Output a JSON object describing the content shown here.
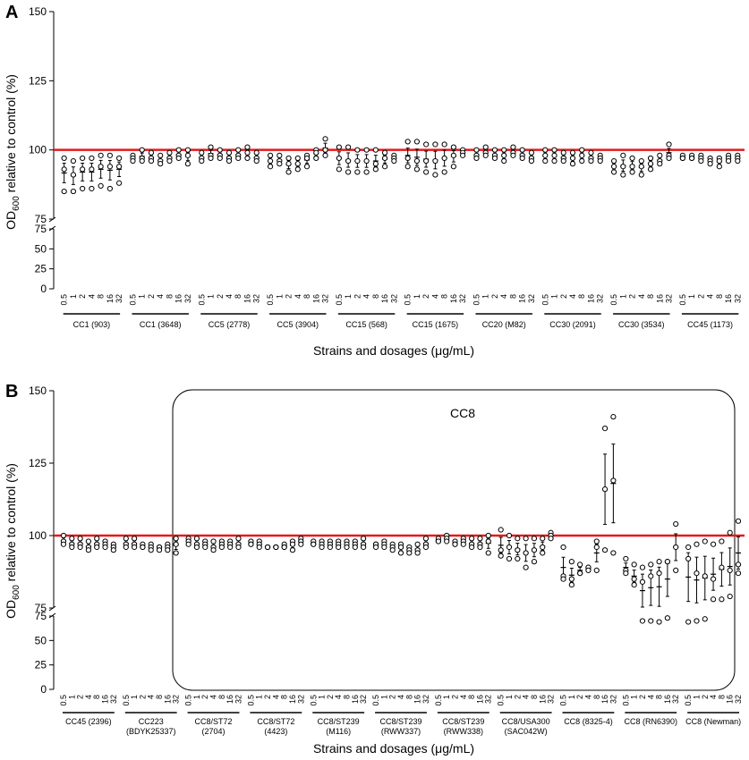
{
  "doses": [
    "0.5",
    "1",
    "2",
    "4",
    "8",
    "16",
    "32"
  ],
  "reference_value": 100,
  "colors": {
    "reference_line": "#e41a1c",
    "marks": "#000000"
  },
  "chart_data": [
    {
      "type": "scatter",
      "panel": "A",
      "ylabel": {
        "main": "OD",
        "sub": "600",
        "rest": " relative to control (%)"
      },
      "xlabel": "Strains and dosages (μg/mL)",
      "y_upper": {
        "range": [
          75,
          150
        ],
        "ticks": [
          "75",
          "100",
          "125",
          "150"
        ]
      },
      "y_lower": {
        "range": [
          0,
          75
        ],
        "ticks": [
          "0",
          "25",
          "50",
          "75"
        ]
      },
      "groups": [
        {
          "label": [
            "CC1 (903)"
          ],
          "points": [
            [
              97,
              93,
              85
            ],
            [
              96,
              91,
              85
            ],
            [
              97,
              93,
              86
            ],
            [
              97,
              93,
              86
            ],
            [
              98,
              94,
              87
            ],
            [
              98,
              94,
              86
            ],
            [
              97,
              94,
              88
            ]
          ]
        },
        {
          "label": [
            "CC1 (3648)"
          ],
          "points": [
            [
              98,
              97,
              96
            ],
            [
              100,
              97,
              96
            ],
            [
              99,
              97,
              96
            ],
            [
              98,
              96,
              95
            ],
            [
              99,
              97,
              96
            ],
            [
              100,
              98,
              97
            ],
            [
              100,
              98,
              95
            ]
          ]
        },
        {
          "label": [
            "CC5 (2778)"
          ],
          "points": [
            [
              99,
              97,
              96
            ],
            [
              101,
              98,
              97
            ],
            [
              100,
              98,
              97
            ],
            [
              99,
              97,
              96
            ],
            [
              100,
              98,
              97
            ],
            [
              101,
              99,
              97
            ],
            [
              99,
              97,
              96
            ]
          ]
        },
        {
          "label": [
            "CC5 (3904)"
          ],
          "points": [
            [
              98,
              96,
              94
            ],
            [
              98,
              96,
              95
            ],
            [
              97,
              95,
              92
            ],
            [
              97,
              95,
              93
            ],
            [
              98,
              97,
              94
            ],
            [
              100,
              99,
              97
            ],
            [
              104,
              100,
              98
            ]
          ]
        },
        {
          "label": [
            "CC15 (568)"
          ],
          "points": [
            [
              101,
              97,
              93
            ],
            [
              101,
              96,
              92
            ],
            [
              100,
              96,
              92
            ],
            [
              100,
              96,
              92
            ],
            [
              100,
              95,
              93
            ],
            [
              99,
              97,
              94
            ],
            [
              98,
              97,
              96
            ]
          ]
        },
        {
          "label": [
            "CC15 (1675)"
          ],
          "points": [
            [
              103,
              97,
              94
            ],
            [
              103,
              96,
              93
            ],
            [
              102,
              96,
              92
            ],
            [
              102,
              96,
              91
            ],
            [
              102,
              97,
              92
            ],
            [
              101,
              98,
              94
            ],
            [
              100,
              99,
              98
            ]
          ]
        },
        {
          "label": [
            "CC20 (M82)"
          ],
          "points": [
            [
              100,
              98,
              97
            ],
            [
              101,
              99,
              98
            ],
            [
              100,
              98,
              97
            ],
            [
              100,
              98,
              96
            ],
            [
              101,
              99,
              98
            ],
            [
              100,
              98,
              97
            ],
            [
              99,
              97,
              96
            ]
          ]
        },
        {
          "label": [
            "CC30 (2091)"
          ],
          "points": [
            [
              100,
              98,
              96
            ],
            [
              100,
              98,
              96
            ],
            [
              99,
              97,
              96
            ],
            [
              99,
              97,
              95
            ],
            [
              100,
              98,
              96
            ],
            [
              99,
              97,
              96
            ],
            [
              98,
              97,
              96
            ]
          ]
        },
        {
          "label": [
            "CC30 (3534)"
          ],
          "points": [
            [
              96,
              94,
              92
            ],
            [
              98,
              94,
              91
            ],
            [
              97,
              94,
              92
            ],
            [
              96,
              94,
              91
            ],
            [
              97,
              95,
              93
            ],
            [
              98,
              96,
              95
            ],
            [
              102,
              98,
              97
            ]
          ]
        },
        {
          "label": [
            "CC45 (1173)"
          ],
          "points": [
            [
              98,
              97,
              97
            ],
            [
              98,
              97,
              97
            ],
            [
              98,
              97,
              96
            ],
            [
              97,
              96,
              95
            ],
            [
              97,
              96,
              94
            ],
            [
              98,
              97,
              96
            ],
            [
              98,
              97,
              96
            ]
          ]
        }
      ]
    },
    {
      "type": "scatter",
      "panel": "B",
      "ylabel": {
        "main": "OD",
        "sub": "600",
        "rest": " relative to control (%)"
      },
      "xlabel": "Strains and dosages (μg/mL)",
      "annotation": "CC8",
      "y_upper": {
        "range": [
          75,
          150
        ],
        "ticks": [
          "75",
          "100",
          "125",
          "150"
        ]
      },
      "y_lower": {
        "range": [
          0,
          75
        ],
        "ticks": [
          "0",
          "25",
          "50",
          "75"
        ]
      },
      "groups": [
        {
          "label": [
            "CC45 (2396)"
          ],
          "points": [
            [
              100,
              98,
              97
            ],
            [
              99,
              97,
              96
            ],
            [
              99,
              97,
              96
            ],
            [
              98,
              96,
              95
            ],
            [
              99,
              97,
              96
            ],
            [
              98,
              97,
              96
            ],
            [
              97,
              96,
              95
            ]
          ]
        },
        {
          "label": [
            "CC223",
            "(BDYK25337)"
          ],
          "points": [
            [
              99,
              97,
              96
            ],
            [
              99,
              97,
              96
            ],
            [
              97,
              96,
              96
            ],
            [
              97,
              96,
              95
            ],
            [
              96,
              96,
              95
            ],
            [
              97,
              96,
              95
            ],
            [
              99,
              97,
              94
            ]
          ]
        },
        {
          "label": [
            "CC8/ST72",
            "(2704)"
          ],
          "points": [
            [
              99,
              98,
              97
            ],
            [
              99,
              97,
              96
            ],
            [
              98,
              97,
              96
            ],
            [
              98,
              96,
              95
            ],
            [
              98,
              97,
              96
            ],
            [
              98,
              97,
              96
            ],
            [
              99,
              97,
              96
            ]
          ]
        },
        {
          "label": [
            "CC8/ST72",
            "(4423)"
          ],
          "points": [
            [
              98,
              97,
              97
            ],
            [
              98,
              97,
              96
            ],
            [
              96,
              96,
              96
            ],
            [
              96,
              96,
              96
            ],
            [
              97,
              96,
              96
            ],
            [
              98,
              97,
              95
            ],
            [
              99,
              98,
              97
            ]
          ]
        },
        {
          "label": [
            "CC8/ST239",
            "(M116)"
          ],
          "points": [
            [
              98,
              97,
              97
            ],
            [
              98,
              97,
              96
            ],
            [
              98,
              97,
              96
            ],
            [
              98,
              97,
              96
            ],
            [
              98,
              97,
              96
            ],
            [
              98,
              97,
              96
            ],
            [
              99,
              97,
              96
            ]
          ]
        },
        {
          "label": [
            "CC8/ST239",
            "(RWW337)"
          ],
          "points": [
            [
              97,
              97,
              96
            ],
            [
              98,
              97,
              96
            ],
            [
              97,
              96,
              95
            ],
            [
              97,
              96,
              94
            ],
            [
              96,
              95,
              94
            ],
            [
              97,
              95,
              94
            ],
            [
              99,
              97,
              96
            ]
          ]
        },
        {
          "label": [
            "CC8/ST239",
            "(RWW338)"
          ],
          "points": [
            [
              99,
              98,
              98
            ],
            [
              100,
              99,
              98
            ],
            [
              98,
              97,
              97
            ],
            [
              99,
              98,
              97
            ],
            [
              99,
              97,
              96
            ],
            [
              99,
              97,
              96
            ],
            [
              100,
              98,
              94
            ]
          ]
        },
        {
          "label": [
            "CC8/USA300",
            "(SAC042W)"
          ],
          "points": [
            [
              102,
              95,
              93
            ],
            [
              100,
              96,
              92
            ],
            [
              99,
              95,
              92
            ],
            [
              99,
              94,
              89
            ],
            [
              99,
              95,
              91
            ],
            [
              99,
              96,
              94
            ],
            [
              101,
              100,
              99
            ]
          ]
        },
        {
          "label": [
            "CC8 (8325-4)"
          ],
          "points": [
            [
              96,
              86,
              85
            ],
            [
              91,
              85,
              83
            ],
            [
              90,
              87,
              87
            ],
            [
              89,
              89,
              88
            ],
            [
              98,
              96,
              88
            ],
            [
              137,
              116,
              95
            ],
            [
              141,
              119,
              94
            ]
          ]
        },
        {
          "label": [
            "CC8 (RN6390)"
          ],
          "points": [
            [
              92,
              88,
              87
            ],
            [
              90,
              85,
              83
            ],
            [
              89,
              84,
              70
            ],
            [
              90,
              86,
              70
            ],
            [
              91,
              87,
              69
            ],
            [
              91,
              91,
              73
            ],
            [
              104,
              96,
              88
            ]
          ]
        },
        {
          "label": [
            "CC8 (Newman)"
          ],
          "points": [
            [
              96,
              92,
              69
            ],
            [
              97,
              87,
              70
            ],
            [
              98,
              86,
              72
            ],
            [
              97,
              85,
              78
            ],
            [
              98,
              89,
              78
            ],
            [
              101,
              88,
              79
            ],
            [
              105,
              90,
              87
            ]
          ]
        }
      ]
    }
  ]
}
